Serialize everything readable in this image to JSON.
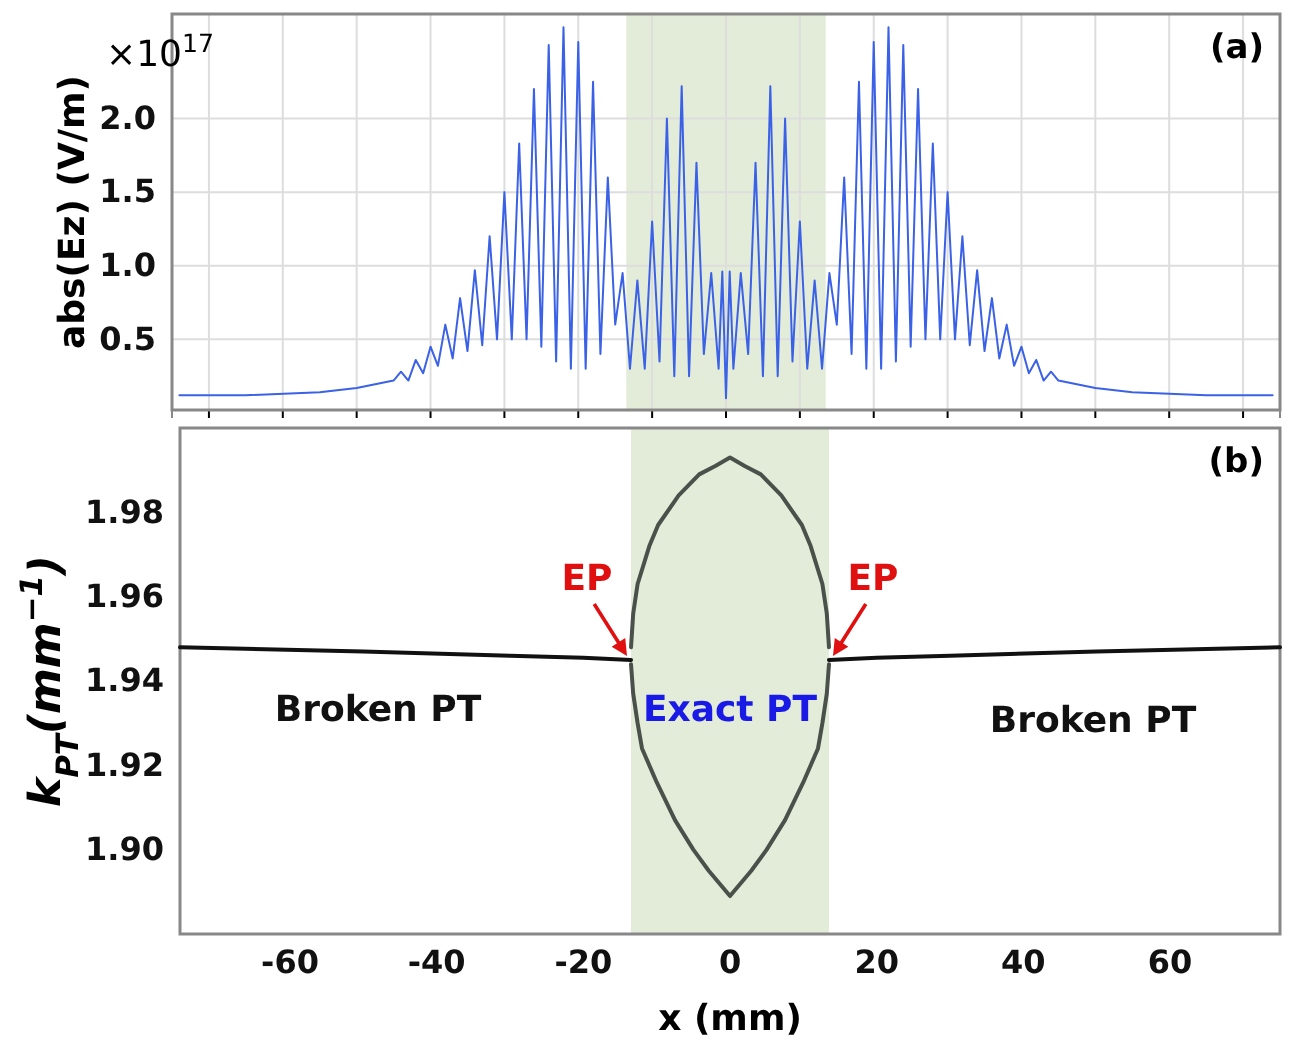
{
  "chart_data": [
    {
      "type": "line",
      "title": "(a)",
      "ylabel": "abs(Ez)  (V/m)",
      "annotations": [
        "×10$^{17}$"
      ],
      "xlim": [
        -75,
        75
      ],
      "xticks": [
        -70,
        -60,
        -50,
        -40,
        -30,
        -20,
        -10,
        0,
        10,
        20,
        30,
        40,
        50,
        60,
        70
      ],
      "ylim": [
        0.02,
        2.71
      ],
      "yticks": [
        {
          "value": 0.5,
          "label": "0.5"
        },
        {
          "value": 1,
          "label": "1.0"
        },
        {
          "value": 1.5,
          "label": "1.5"
        },
        {
          "value": 2,
          "label": "2.0"
        }
      ],
      "grid": true,
      "tick_labels": "y",
      "bands": [
        {
          "axis": "x",
          "from": -13.5,
          "to": 13.5,
          "color": "#e3ecd9"
        }
      ],
      "series": [
        {
          "color": "#3b62e6",
          "x": [
            -74,
            -65,
            -55,
            -50,
            -47,
            -45,
            -44,
            -43,
            -42,
            -41,
            -40,
            -39,
            -38,
            -37,
            -36,
            -35,
            -34,
            -33,
            -32,
            -31,
            -30,
            -29,
            -28,
            -27,
            -26,
            -25,
            -24,
            -23,
            -22,
            -21,
            -20,
            -19,
            -18,
            -17,
            -16,
            -15,
            -14,
            -13,
            -12,
            -11,
            -10,
            -9,
            -8,
            -7,
            -6,
            -5,
            -4,
            -3,
            -2,
            -1,
            -0.5,
            0,
            0.5,
            1,
            2,
            3,
            4,
            5,
            6,
            7,
            8,
            9,
            10,
            11,
            12,
            13,
            14,
            15,
            16,
            17,
            18,
            19,
            20,
            21,
            22,
            23,
            24,
            25,
            26,
            27,
            28,
            29,
            30,
            31,
            32,
            33,
            34,
            35,
            36,
            37,
            38,
            39,
            40,
            41,
            42,
            43,
            44,
            45,
            47,
            50,
            55,
            65,
            74
          ],
          "values": [
            0.12,
            0.12,
            0.14,
            0.17,
            0.2,
            0.22,
            0.28,
            0.22,
            0.36,
            0.27,
            0.45,
            0.32,
            0.6,
            0.37,
            0.78,
            0.42,
            0.97,
            0.46,
            1.2,
            0.5,
            1.5,
            0.5,
            1.83,
            0.5,
            2.2,
            0.45,
            2.5,
            0.35,
            2.62,
            0.3,
            2.52,
            0.3,
            2.25,
            0.4,
            1.6,
            0.6,
            0.95,
            0.3,
            0.9,
            0.3,
            1.3,
            0.35,
            2.0,
            0.25,
            2.22,
            0.25,
            1.7,
            0.4,
            0.95,
            0.3,
            0.96,
            0.1,
            0.96,
            0.3,
            0.95,
            0.4,
            1.7,
            0.25,
            2.22,
            0.25,
            2.0,
            0.35,
            1.3,
            0.3,
            0.9,
            0.3,
            0.95,
            0.6,
            1.6,
            0.4,
            2.25,
            0.3,
            2.52,
            0.3,
            2.62,
            0.35,
            2.5,
            0.45,
            2.2,
            0.5,
            1.83,
            0.5,
            1.5,
            0.5,
            1.2,
            0.46,
            0.97,
            0.42,
            0.78,
            0.37,
            0.6,
            0.32,
            0.45,
            0.27,
            0.36,
            0.22,
            0.28,
            0.22,
            0.2,
            0.17,
            0.14,
            0.12,
            0.12
          ]
        }
      ]
    },
    {
      "type": "line",
      "title": "(b)",
      "xlabel": "x (mm)",
      "ylabel": "k$_{PT}$(mm$^{−1}$)",
      "xlim": [
        -75,
        75
      ],
      "xticks": [
        -60,
        -40,
        -20,
        0,
        20,
        40,
        60
      ],
      "ylim": [
        1.88,
        2.0
      ],
      "yticks": [
        {
          "value": 1.9,
          "label": "1.90"
        },
        1.92,
        1.94,
        1.96,
        1.98
      ],
      "bands": [
        {
          "axis": "x",
          "from": -13.5,
          "to": 13.5,
          "color": "#e3ecd9"
        }
      ],
      "annotations": [
        {
          "text": "EP",
          "x": -13.5,
          "y": 1.945
        },
        {
          "text": "EP",
          "x": 13.5,
          "y": 1.945
        },
        "Broken PT",
        "Exact PT",
        "Broken PT"
      ],
      "series": [
        {
          "color": "#111111",
          "x": [
            -75,
            -50,
            -30,
            -20,
            -13.5
          ],
          "values": [
            1.948,
            1.947,
            1.946,
            1.9455,
            1.945
          ]
        },
        {
          "color": "#111111",
          "x": [
            13.5,
            20,
            30,
            50,
            75
          ],
          "values": [
            1.945,
            1.9455,
            1.946,
            1.947,
            1.948
          ]
        },
        {
          "color": "#4a504a",
          "x": [
            -13.5,
            -13.2,
            -12.6,
            -11,
            -9.8,
            -7,
            -4.2,
            -2,
            0,
            2,
            4.2,
            7,
            9.8,
            11,
            12.6,
            13.2,
            13.5
          ],
          "values": [
            1.948,
            1.956,
            1.963,
            1.972,
            1.977,
            1.984,
            1.989,
            1.991,
            1.993,
            1.991,
            1.989,
            1.984,
            1.977,
            1.972,
            1.963,
            1.956,
            1.948
          ]
        },
        {
          "color": "#4a504a",
          "x": [
            -13.5,
            -13.2,
            -12.6,
            -12,
            -10,
            -7.5,
            -5,
            -2.9,
            0,
            2.9,
            5,
            7.5,
            10,
            12,
            12.6,
            13.2,
            13.5
          ],
          "values": [
            1.944,
            1.937,
            1.93,
            1.924,
            1.916,
            1.907,
            1.9,
            1.895,
            1.889,
            1.895,
            1.9,
            1.907,
            1.916,
            1.924,
            1.93,
            1.937,
            1.944
          ]
        }
      ]
    }
  ]
}
